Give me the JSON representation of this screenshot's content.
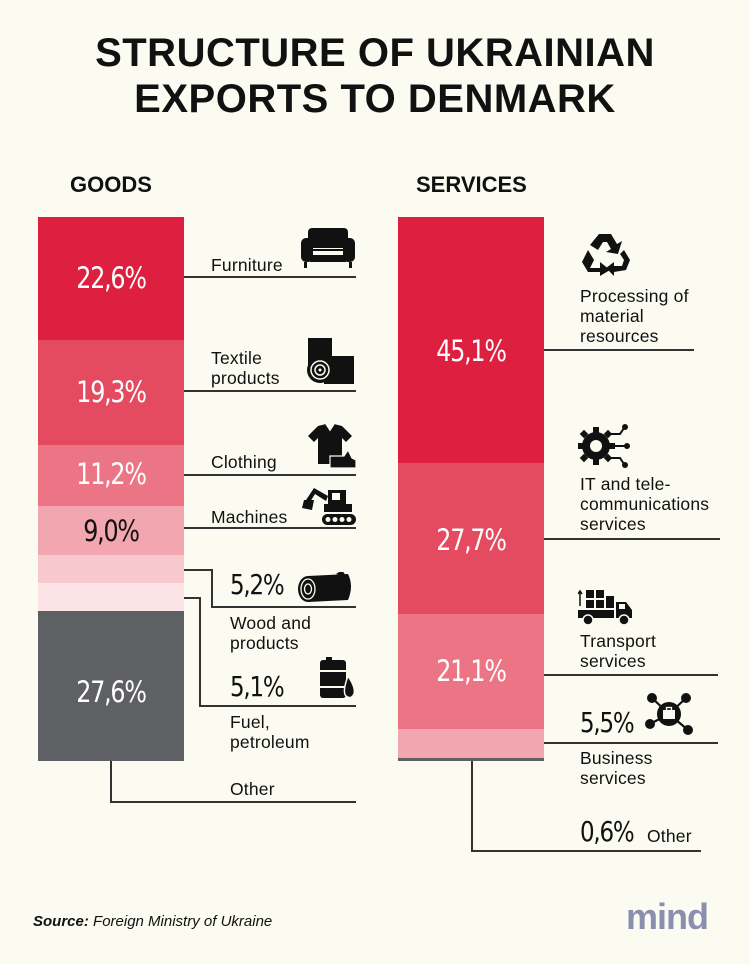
{
  "title_line1": "STRUCTURE OF UKRAINIAN",
  "title_line2": "EXPORTS TO DENMARK",
  "goods_heading": "GOODS",
  "services_heading": "SERVICES",
  "source_label": "Source:",
  "source_text": "Foreign Ministry of Ukraine",
  "logo_text": "mind",
  "icons": {
    "furniture": "sofa-icon",
    "textile": "fabric-roll-icon",
    "clothing": "shirt-shoe-icon",
    "machines": "excavator-icon",
    "wood": "log-icon",
    "fuel": "oil-barrel-icon",
    "processing": "recycle-icon",
    "it": "gear-circuit-icon",
    "transport": "truck-icon",
    "business": "network-briefcase-icon"
  },
  "chart_data": [
    {
      "type": "bar",
      "stacked": true,
      "title": "GOODS",
      "categories": [
        "Furniture",
        "Textile products",
        "Clothing",
        "Machines",
        "Wood and products",
        "Fuel, petroleum",
        "Other"
      ],
      "values": [
        22.6,
        19.3,
        11.2,
        9.0,
        5.2,
        5.1,
        27.6
      ],
      "labels": [
        "22,6%",
        "19,3%",
        "11,2%",
        "9,0%",
        "5,2%",
        "5,1%",
        "27,6%"
      ],
      "colors": [
        "#dd2040",
        "#e44b61",
        "#ec7585",
        "#f2a6b0",
        "#f7c9cf",
        "#fbe3e6",
        "#5f6063"
      ],
      "label_text_colors": [
        "#ffffff",
        "#ffffff",
        "#ffffff",
        "#111111",
        "",
        "",
        "#ffffff"
      ]
    },
    {
      "type": "bar",
      "stacked": true,
      "title": "SERVICES",
      "categories": [
        "Processing of material resources",
        "IT and tele-communications services",
        "Transport services",
        "Business services",
        "Other"
      ],
      "values": [
        45.1,
        27.7,
        21.1,
        5.5,
        0.6
      ],
      "labels": [
        "45,1%",
        "27,7%",
        "21,1%",
        "5,5%",
        "0,6%"
      ],
      "colors": [
        "#dd2040",
        "#e44b61",
        "#ec7585",
        "#f2a6b0",
        "#5f6063"
      ],
      "label_text_colors": [
        "#ffffff",
        "#ffffff",
        "#ffffff",
        "",
        ""
      ]
    }
  ]
}
